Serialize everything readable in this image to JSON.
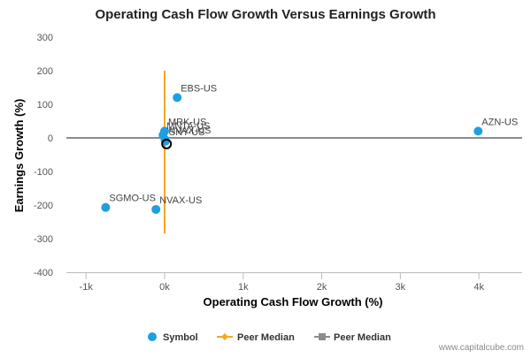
{
  "chart_data": {
    "type": "scatter",
    "title": "Operating Cash Flow Growth Versus Earnings Growth",
    "xlabel": "Operating Cash Flow Growth (%)",
    "ylabel": "Earnings Growth (%)",
    "xlim": [
      -1250,
      4550
    ],
    "ylim": [
      -400,
      300
    ],
    "x_ticks": [
      {
        "value": -1000,
        "label": "-1k"
      },
      {
        "value": 0,
        "label": "0k"
      },
      {
        "value": 1000,
        "label": "1k"
      },
      {
        "value": 2000,
        "label": "2k"
      },
      {
        "value": 3000,
        "label": "3k"
      },
      {
        "value": 4000,
        "label": "4k"
      }
    ],
    "y_ticks": [
      {
        "value": 300,
        "label": "300"
      },
      {
        "value": 200,
        "label": "200"
      },
      {
        "value": 100,
        "label": "100"
      },
      {
        "value": 0,
        "label": "0"
      },
      {
        "value": -100,
        "label": "-100"
      },
      {
        "value": -200,
        "label": "-200"
      },
      {
        "value": -300,
        "label": "-300"
      },
      {
        "value": -400,
        "label": "-400"
      }
    ],
    "points": [
      {
        "label": "EBS-US",
        "x": 160,
        "y": 120
      },
      {
        "label": "MRK-US",
        "x": 0,
        "y": 20
      },
      {
        "label": "MNTA-US",
        "x": -20,
        "y": 8
      },
      {
        "label": "NVAX-US",
        "x": 5,
        "y": -5
      },
      {
        "label": "SNY-US",
        "x": 10,
        "y": -10
      },
      {
        "label": "AZN-US",
        "x": 3990,
        "y": 20
      },
      {
        "label": "SGMO-US",
        "x": -750,
        "y": -207
      },
      {
        "label": "NVAX-US",
        "x": -110,
        "y": -213
      }
    ],
    "highlighted_point": {
      "x": 25,
      "y": -18
    },
    "peer_median": {
      "x": 0,
      "y": 0,
      "vertical_range": [
        -285,
        200
      ]
    },
    "legend": {
      "position": "bottom",
      "items": [
        "Symbol",
        "Peer Median",
        "Peer Median"
      ]
    },
    "colors": {
      "symbol": "#1e9fe0",
      "peer_median_x": "#f5a623",
      "peer_median_y": "#8c8c8c",
      "grid": "#d0d0d0",
      "axis": "#bbbbbb"
    },
    "grid": false,
    "credit": "www.capitalcube.com"
  }
}
